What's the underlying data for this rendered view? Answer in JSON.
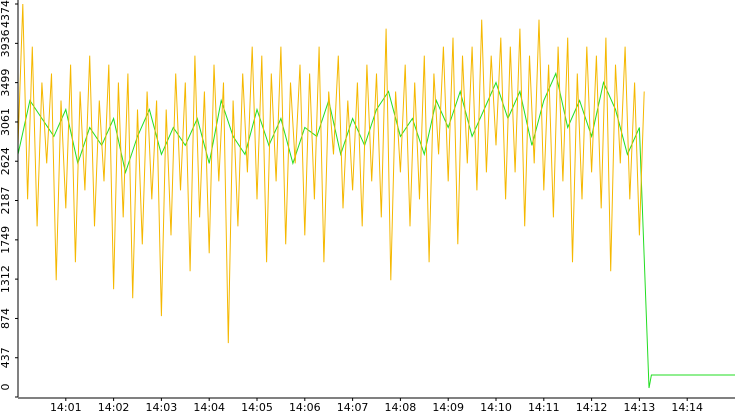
{
  "chart_data": {
    "type": "line",
    "xlim": [
      0,
      15
    ],
    "xticks": [
      {
        "value": 1,
        "label": "14:01"
      },
      {
        "value": 2,
        "label": "14:02"
      },
      {
        "value": 3,
        "label": "14:03"
      },
      {
        "value": 4,
        "label": "14:04"
      },
      {
        "value": 5,
        "label": "14:05"
      },
      {
        "value": 6,
        "label": "14:06"
      },
      {
        "value": 7,
        "label": "14:07"
      },
      {
        "value": 8,
        "label": "14:08"
      },
      {
        "value": 9,
        "label": "14:09"
      },
      {
        "value": 10,
        "label": "14:10"
      },
      {
        "value": 11,
        "label": "14:11"
      },
      {
        "value": 12,
        "label": "14:12"
      },
      {
        "value": 13,
        "label": "14:13"
      },
      {
        "value": 14,
        "label": "14:14"
      }
    ],
    "ylim": [
      0,
      4374
    ],
    "yticks": [
      0,
      437,
      874,
      1312,
      1749,
      2187,
      2624,
      3061,
      3499,
      3936,
      4374
    ],
    "grid": false,
    "series": [
      {
        "color": "#22dd22",
        "x": [
          0,
          0.25,
          0.5,
          0.75,
          1,
          1.25,
          1.5,
          1.75,
          2,
          2.25,
          2.5,
          2.75,
          3,
          3.25,
          3.5,
          3.75,
          4,
          4.25,
          4.5,
          4.75,
          5,
          5.25,
          5.5,
          5.75,
          6,
          6.25,
          6.5,
          6.75,
          7,
          7.25,
          7.5,
          7.75,
          8,
          8.25,
          8.5,
          8.75,
          9,
          9.25,
          9.5,
          9.75,
          10,
          10.25,
          10.5,
          10.75,
          11,
          11.25,
          11.5,
          11.75,
          12,
          12.25,
          12.5,
          12.75,
          13,
          13.2,
          13.25,
          15
        ],
        "values": [
          2700,
          3300,
          3100,
          2900,
          3200,
          2600,
          3000,
          2800,
          3100,
          2500,
          2900,
          3200,
          2700,
          3000,
          2800,
          3100,
          2600,
          3300,
          2900,
          2700,
          3200,
          2800,
          3100,
          2600,
          3000,
          2900,
          3300,
          2700,
          3100,
          2800,
          3200,
          3400,
          2900,
          3100,
          2700,
          3300,
          3000,
          3400,
          2900,
          3200,
          3500,
          3100,
          3400,
          2800,
          3300,
          3600,
          3000,
          3300,
          2900,
          3500,
          3200,
          2700,
          3000,
          100,
          245,
          245
        ]
      },
      {
        "color": "#f5b800",
        "x": [
          0,
          0.1,
          0.2,
          0.3,
          0.4,
          0.5,
          0.6,
          0.7,
          0.8,
          0.9,
          1,
          1.1,
          1.2,
          1.3,
          1.4,
          1.5,
          1.6,
          1.7,
          1.8,
          1.9,
          2,
          2.1,
          2.2,
          2.3,
          2.4,
          2.5,
          2.6,
          2.7,
          2.8,
          2.9,
          3,
          3.1,
          3.2,
          3.3,
          3.4,
          3.5,
          3.6,
          3.7,
          3.8,
          3.9,
          4,
          4.1,
          4.2,
          4.3,
          4.4,
          4.5,
          4.6,
          4.7,
          4.8,
          4.9,
          5,
          5.1,
          5.2,
          5.3,
          5.4,
          5.5,
          5.6,
          5.7,
          5.8,
          5.9,
          6,
          6.1,
          6.2,
          6.3,
          6.4,
          6.5,
          6.6,
          6.7,
          6.8,
          6.9,
          7,
          7.1,
          7.2,
          7.3,
          7.4,
          7.5,
          7.6,
          7.7,
          7.8,
          7.9,
          8,
          8.1,
          8.2,
          8.3,
          8.4,
          8.5,
          8.6,
          8.7,
          8.8,
          8.9,
          9,
          9.1,
          9.2,
          9.3,
          9.4,
          9.5,
          9.6,
          9.7,
          9.8,
          9.9,
          10,
          10.1,
          10.2,
          10.3,
          10.4,
          10.5,
          10.6,
          10.7,
          10.8,
          10.9,
          11,
          11.1,
          11.2,
          11.3,
          11.4,
          11.5,
          11.6,
          11.7,
          11.8,
          11.9,
          12,
          12.1,
          12.2,
          12.3,
          12.4,
          12.5,
          12.6,
          12.7,
          12.8,
          12.9,
          13,
          13.1
        ],
        "values": [
          2800,
          4374,
          2200,
          3900,
          1900,
          3500,
          2600,
          3600,
          1300,
          3300,
          2100,
          3700,
          1500,
          3400,
          2300,
          3800,
          1900,
          3300,
          2400,
          3700,
          1200,
          3500,
          2000,
          3600,
          1100,
          3200,
          1700,
          3400,
          2200,
          3300,
          900,
          3200,
          1800,
          3600,
          2300,
          3500,
          1400,
          3800,
          2000,
          3400,
          1600,
          3700,
          2400,
          3500,
          600,
          3300,
          1900,
          3600,
          2500,
          3900,
          2200,
          3800,
          1500,
          3600,
          2400,
          3900,
          1700,
          3500,
          2600,
          3700,
          1800,
          3600,
          2200,
          3900,
          1500,
          3400,
          2700,
          3800,
          2100,
          3300,
          2300,
          3500,
          1900,
          3700,
          2400,
          3600,
          2000,
          4100,
          1300,
          3400,
          2500,
          3700,
          1900,
          3500,
          2200,
          3800,
          1500,
          3600,
          2700,
          3900,
          2400,
          4000,
          1700,
          3800,
          2600,
          3900,
          2300,
          4200,
          2500,
          3800,
          2800,
          4000,
          2200,
          3900,
          2500,
          4100,
          1900,
          3800,
          2600,
          4200,
          2300,
          3700,
          2000,
          3900,
          2400,
          4000,
          1500,
          3600,
          2200,
          3900,
          2500,
          3800,
          2100,
          4000,
          1400,
          3700,
          2600,
          3900,
          2200,
          3500,
          1800,
          3400
        ]
      }
    ]
  }
}
